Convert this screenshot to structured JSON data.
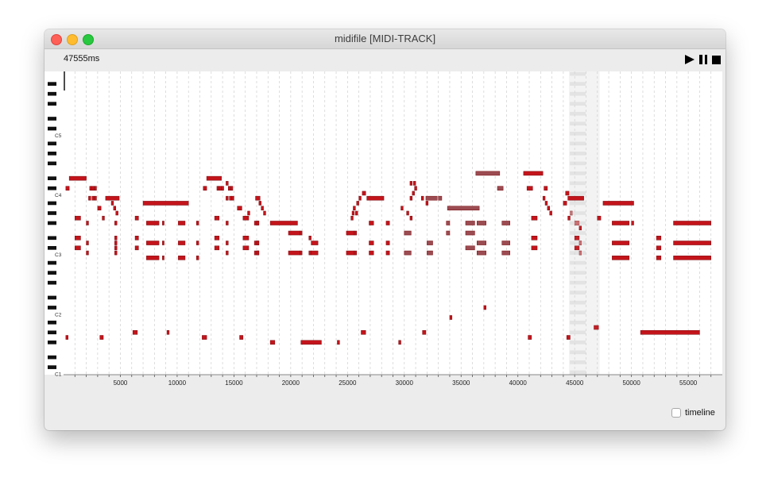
{
  "window": {
    "title": "midifile [MIDI-TRACK]"
  },
  "status": {
    "time": "47555ms"
  },
  "controls": {
    "play_icon": "play-icon",
    "pause_icon": "pause-icon",
    "stop_icon": "stop-icon"
  },
  "timeline_toggle": {
    "label": "timeline",
    "checked": false
  },
  "piano_roll": {
    "note_labels": [
      {
        "name": "C5",
        "pitch": 72
      },
      {
        "name": "C4",
        "pitch": 60
      },
      {
        "name": "C3",
        "pitch": 48
      },
      {
        "name": "C2",
        "pitch": 36
      },
      {
        "name": "C1",
        "pitch": 24
      }
    ],
    "axis_ticks": [
      "5000",
      "10000",
      "15000",
      "20000",
      "25000",
      "30000",
      "35000",
      "40000",
      "45000",
      "50000",
      "55000"
    ],
    "time_range_ms": [
      0,
      58000
    ],
    "pitch_range": [
      24,
      84
    ],
    "minor_tick_ms": 1000,
    "playhead_ms": 0,
    "playing_region_ms": [
      44500,
      47200
    ],
    "colors": {
      "note": "#c4141b",
      "note_border": "#7a0a0e",
      "note_muted": "#9b4c52",
      "grid": "#cfcfcf",
      "selection": "#dcdcdc"
    },
    "notes": [
      [
        200,
        500,
        61
      ],
      [
        500,
        2000,
        63
      ],
      [
        2300,
        2500,
        61
      ],
      [
        2500,
        2700,
        61
      ],
      [
        2700,
        2900,
        61
      ],
      [
        2200,
        2400,
        59
      ],
      [
        2500,
        2700,
        59
      ],
      [
        2700,
        2900,
        59
      ],
      [
        3000,
        3300,
        57
      ],
      [
        1000,
        1500,
        55
      ],
      [
        1000,
        1500,
        51
      ],
      [
        1000,
        1500,
        49
      ],
      [
        2000,
        2200,
        54
      ],
      [
        2000,
        2200,
        50
      ],
      [
        2000,
        2200,
        48
      ],
      [
        3700,
        4900,
        59
      ],
      [
        4200,
        4400,
        58
      ],
      [
        4400,
        4600,
        57
      ],
      [
        4600,
        4800,
        56
      ],
      [
        4500,
        4700,
        54
      ],
      [
        4500,
        4700,
        50
      ],
      [
        4500,
        4700,
        48
      ],
      [
        3400,
        3600,
        55
      ],
      [
        4500,
        4700,
        51
      ],
      [
        4500,
        4700,
        49
      ],
      [
        6300,
        6600,
        55
      ],
      [
        6300,
        6600,
        51
      ],
      [
        6300,
        6600,
        49
      ],
      [
        7000,
        11000,
        58
      ],
      [
        7300,
        8400,
        54
      ],
      [
        7300,
        8400,
        50
      ],
      [
        7300,
        8400,
        47
      ],
      [
        8700,
        8800,
        54
      ],
      [
        8700,
        8800,
        50
      ],
      [
        8700,
        8800,
        47
      ],
      [
        10100,
        10700,
        54
      ],
      [
        10100,
        10700,
        50
      ],
      [
        10100,
        10700,
        47
      ],
      [
        11700,
        11900,
        54
      ],
      [
        11700,
        11900,
        50
      ],
      [
        11700,
        11900,
        47
      ],
      [
        12600,
        13900,
        63
      ],
      [
        12300,
        12600,
        61
      ],
      [
        13500,
        13700,
        61
      ],
      [
        13700,
        13900,
        61
      ],
      [
        13900,
        14100,
        61
      ],
      [
        14300,
        14500,
        62
      ],
      [
        14500,
        14700,
        61
      ],
      [
        14700,
        14900,
        61
      ],
      [
        14300,
        14500,
        59
      ],
      [
        14600,
        14800,
        59
      ],
      [
        14800,
        15000,
        59
      ],
      [
        15300,
        15700,
        57
      ],
      [
        15800,
        16300,
        55
      ],
      [
        15800,
        16300,
        51
      ],
      [
        15800,
        16300,
        49
      ],
      [
        16200,
        16400,
        56
      ],
      [
        16800,
        17200,
        54
      ],
      [
        16800,
        17200,
        50
      ],
      [
        16800,
        17200,
        48
      ],
      [
        13300,
        13700,
        55
      ],
      [
        13300,
        13700,
        51
      ],
      [
        13300,
        13700,
        49
      ],
      [
        14300,
        14500,
        54
      ],
      [
        14300,
        14500,
        50
      ],
      [
        14300,
        14500,
        48
      ],
      [
        16900,
        17300,
        59
      ],
      [
        17200,
        17400,
        58
      ],
      [
        17400,
        17600,
        57
      ],
      [
        17600,
        17800,
        56
      ],
      [
        17000,
        17200,
        54
      ],
      [
        17000,
        17200,
        50
      ],
      [
        17000,
        17200,
        48
      ],
      [
        18200,
        20600,
        54
      ],
      [
        19800,
        20800,
        52
      ],
      [
        20800,
        21000,
        52
      ],
      [
        19800,
        20800,
        48
      ],
      [
        20800,
        21000,
        48
      ],
      [
        21800,
        22400,
        50
      ],
      [
        21800,
        22400,
        48
      ],
      [
        21600,
        21800,
        51
      ],
      [
        21600,
        21800,
        48
      ],
      [
        24900,
        25600,
        52
      ],
      [
        25600,
        25800,
        52
      ],
      [
        24900,
        25600,
        48
      ],
      [
        25600,
        25800,
        48
      ],
      [
        26700,
        28200,
        59
      ],
      [
        26300,
        26600,
        60
      ],
      [
        26000,
        26200,
        59
      ],
      [
        25800,
        26000,
        58
      ],
      [
        25500,
        25700,
        57
      ],
      [
        25400,
        25600,
        56
      ],
      [
        25300,
        25500,
        55
      ],
      [
        25700,
        25900,
        56
      ],
      [
        26900,
        27300,
        54
      ],
      [
        26900,
        27300,
        50
      ],
      [
        26900,
        27300,
        48
      ],
      [
        28400,
        28700,
        54
      ],
      [
        28400,
        28700,
        50
      ],
      [
        28400,
        28700,
        48
      ],
      [
        30000,
        30600,
        52
      ],
      [
        30000,
        30600,
        48
      ],
      [
        31900,
        32900,
        59
      ],
      [
        31500,
        31700,
        59
      ],
      [
        31900,
        32100,
        58
      ],
      [
        29700,
        29900,
        57
      ],
      [
        30200,
        30400,
        56
      ],
      [
        30500,
        30700,
        55
      ],
      [
        30500,
        30700,
        59
      ],
      [
        30700,
        30900,
        60
      ],
      [
        30900,
        31100,
        61
      ],
      [
        30500,
        30700,
        62
      ],
      [
        30800,
        31000,
        62
      ],
      [
        32000,
        32500,
        50
      ],
      [
        32000,
        32500,
        48
      ],
      [
        33800,
        36600,
        57
      ],
      [
        33000,
        33300,
        59
      ],
      [
        33700,
        34000,
        54
      ],
      [
        33700,
        34000,
        52
      ],
      [
        36300,
        38400,
        64
      ],
      [
        38200,
        38700,
        61
      ],
      [
        35400,
        36200,
        54
      ],
      [
        35400,
        36200,
        52
      ],
      [
        35400,
        36200,
        49
      ],
      [
        36400,
        37200,
        54
      ],
      [
        36400,
        37200,
        50
      ],
      [
        36400,
        37200,
        48
      ],
      [
        38600,
        39300,
        54
      ],
      [
        38600,
        39300,
        50
      ],
      [
        38600,
        39300,
        48
      ],
      [
        40500,
        42200,
        64
      ],
      [
        40800,
        41300,
        61
      ],
      [
        42300,
        42600,
        61
      ],
      [
        41200,
        41700,
        55
      ],
      [
        41200,
        41700,
        51
      ],
      [
        41200,
        41700,
        49
      ],
      [
        42200,
        42400,
        59
      ],
      [
        42400,
        42600,
        58
      ],
      [
        42600,
        42800,
        57
      ],
      [
        42800,
        43000,
        56
      ],
      [
        44400,
        45800,
        59
      ],
      [
        44200,
        44500,
        60
      ],
      [
        44000,
        44300,
        58
      ],
      [
        44600,
        44800,
        56
      ],
      [
        44400,
        44600,
        55
      ],
      [
        45000,
        45400,
        54
      ],
      [
        45400,
        45600,
        53
      ],
      [
        45000,
        45400,
        51
      ],
      [
        45400,
        45600,
        50
      ],
      [
        45000,
        45400,
        49
      ],
      [
        45400,
        45600,
        48
      ],
      [
        47500,
        50200,
        58
      ],
      [
        47000,
        47300,
        55
      ],
      [
        48300,
        49800,
        54
      ],
      [
        48300,
        49800,
        50
      ],
      [
        48300,
        49800,
        47
      ],
      [
        50000,
        50200,
        54
      ],
      [
        52200,
        52600,
        51
      ],
      [
        52200,
        52600,
        49
      ],
      [
        52200,
        52600,
        47
      ],
      [
        53700,
        57000,
        54
      ],
      [
        53700,
        57000,
        50
      ],
      [
        53700,
        57000,
        47
      ],
      [
        50800,
        56000,
        32
      ],
      [
        46700,
        47100,
        33
      ],
      [
        200,
        400,
        31
      ],
      [
        3200,
        3500,
        31
      ],
      [
        6100,
        6500,
        32
      ],
      [
        9100,
        9300,
        32
      ],
      [
        12200,
        12600,
        31
      ],
      [
        15500,
        15800,
        31
      ],
      [
        18200,
        18600,
        30
      ],
      [
        20900,
        22700,
        30
      ],
      [
        24100,
        24300,
        30
      ],
      [
        26200,
        26600,
        32
      ],
      [
        29500,
        29700,
        30
      ],
      [
        31600,
        31900,
        32
      ],
      [
        34000,
        34200,
        35
      ],
      [
        37000,
        37200,
        37
      ],
      [
        40900,
        41200,
        31
      ],
      [
        44300,
        44600,
        31
      ]
    ]
  }
}
